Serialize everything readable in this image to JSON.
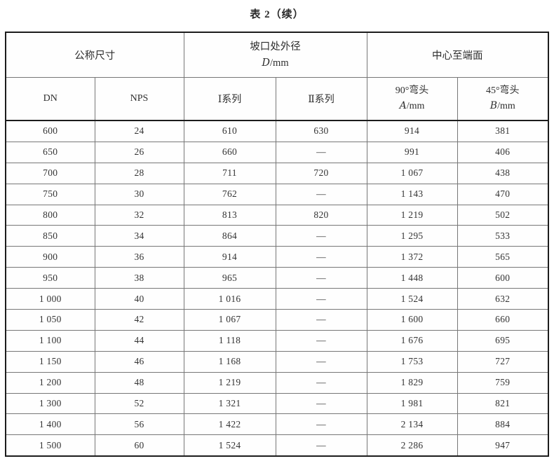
{
  "page": {
    "title": "表 2（续）"
  },
  "table": {
    "group_headers": [
      {
        "label": "公称尺寸"
      },
      {
        "label": "坡口处外径",
        "symbol": "D",
        "unit": "/mm"
      },
      {
        "label": "中心至端面"
      }
    ],
    "sub_headers": {
      "dn": "DN",
      "nps": "NPS",
      "series1": "Ⅰ系列",
      "series2": "Ⅱ系列",
      "elbow90_label": "90°弯头",
      "elbow90_symbol": "A",
      "elbow90_unit": "/mm",
      "elbow45_label": "45°弯头",
      "elbow45_symbol": "B",
      "elbow45_unit": "/mm"
    },
    "rows": [
      [
        "600",
        "24",
        "610",
        "630",
        "914",
        "381"
      ],
      [
        "650",
        "26",
        "660",
        "—",
        "991",
        "406"
      ],
      [
        "700",
        "28",
        "711",
        "720",
        "1 067",
        "438"
      ],
      [
        "750",
        "30",
        "762",
        "—",
        "1 143",
        "470"
      ],
      [
        "800",
        "32",
        "813",
        "820",
        "1 219",
        "502"
      ],
      [
        "850",
        "34",
        "864",
        "—",
        "1 295",
        "533"
      ],
      [
        "900",
        "36",
        "914",
        "—",
        "1 372",
        "565"
      ],
      [
        "950",
        "38",
        "965",
        "—",
        "1 448",
        "600"
      ],
      [
        "1 000",
        "40",
        "1 016",
        "—",
        "1 524",
        "632"
      ],
      [
        "1 050",
        "42",
        "1 067",
        "—",
        "1 600",
        "660"
      ],
      [
        "1 100",
        "44",
        "1 118",
        "—",
        "1 676",
        "695"
      ],
      [
        "1 150",
        "46",
        "1 168",
        "—",
        "1 753",
        "727"
      ],
      [
        "1 200",
        "48",
        "1 219",
        "—",
        "1 829",
        "759"
      ],
      [
        "1 300",
        "52",
        "1 321",
        "—",
        "1 981",
        "821"
      ],
      [
        "1 400",
        "56",
        "1 422",
        "—",
        "2 134",
        "884"
      ],
      [
        "1 500",
        "60",
        "1 524",
        "—",
        "2 286",
        "947"
      ]
    ]
  }
}
